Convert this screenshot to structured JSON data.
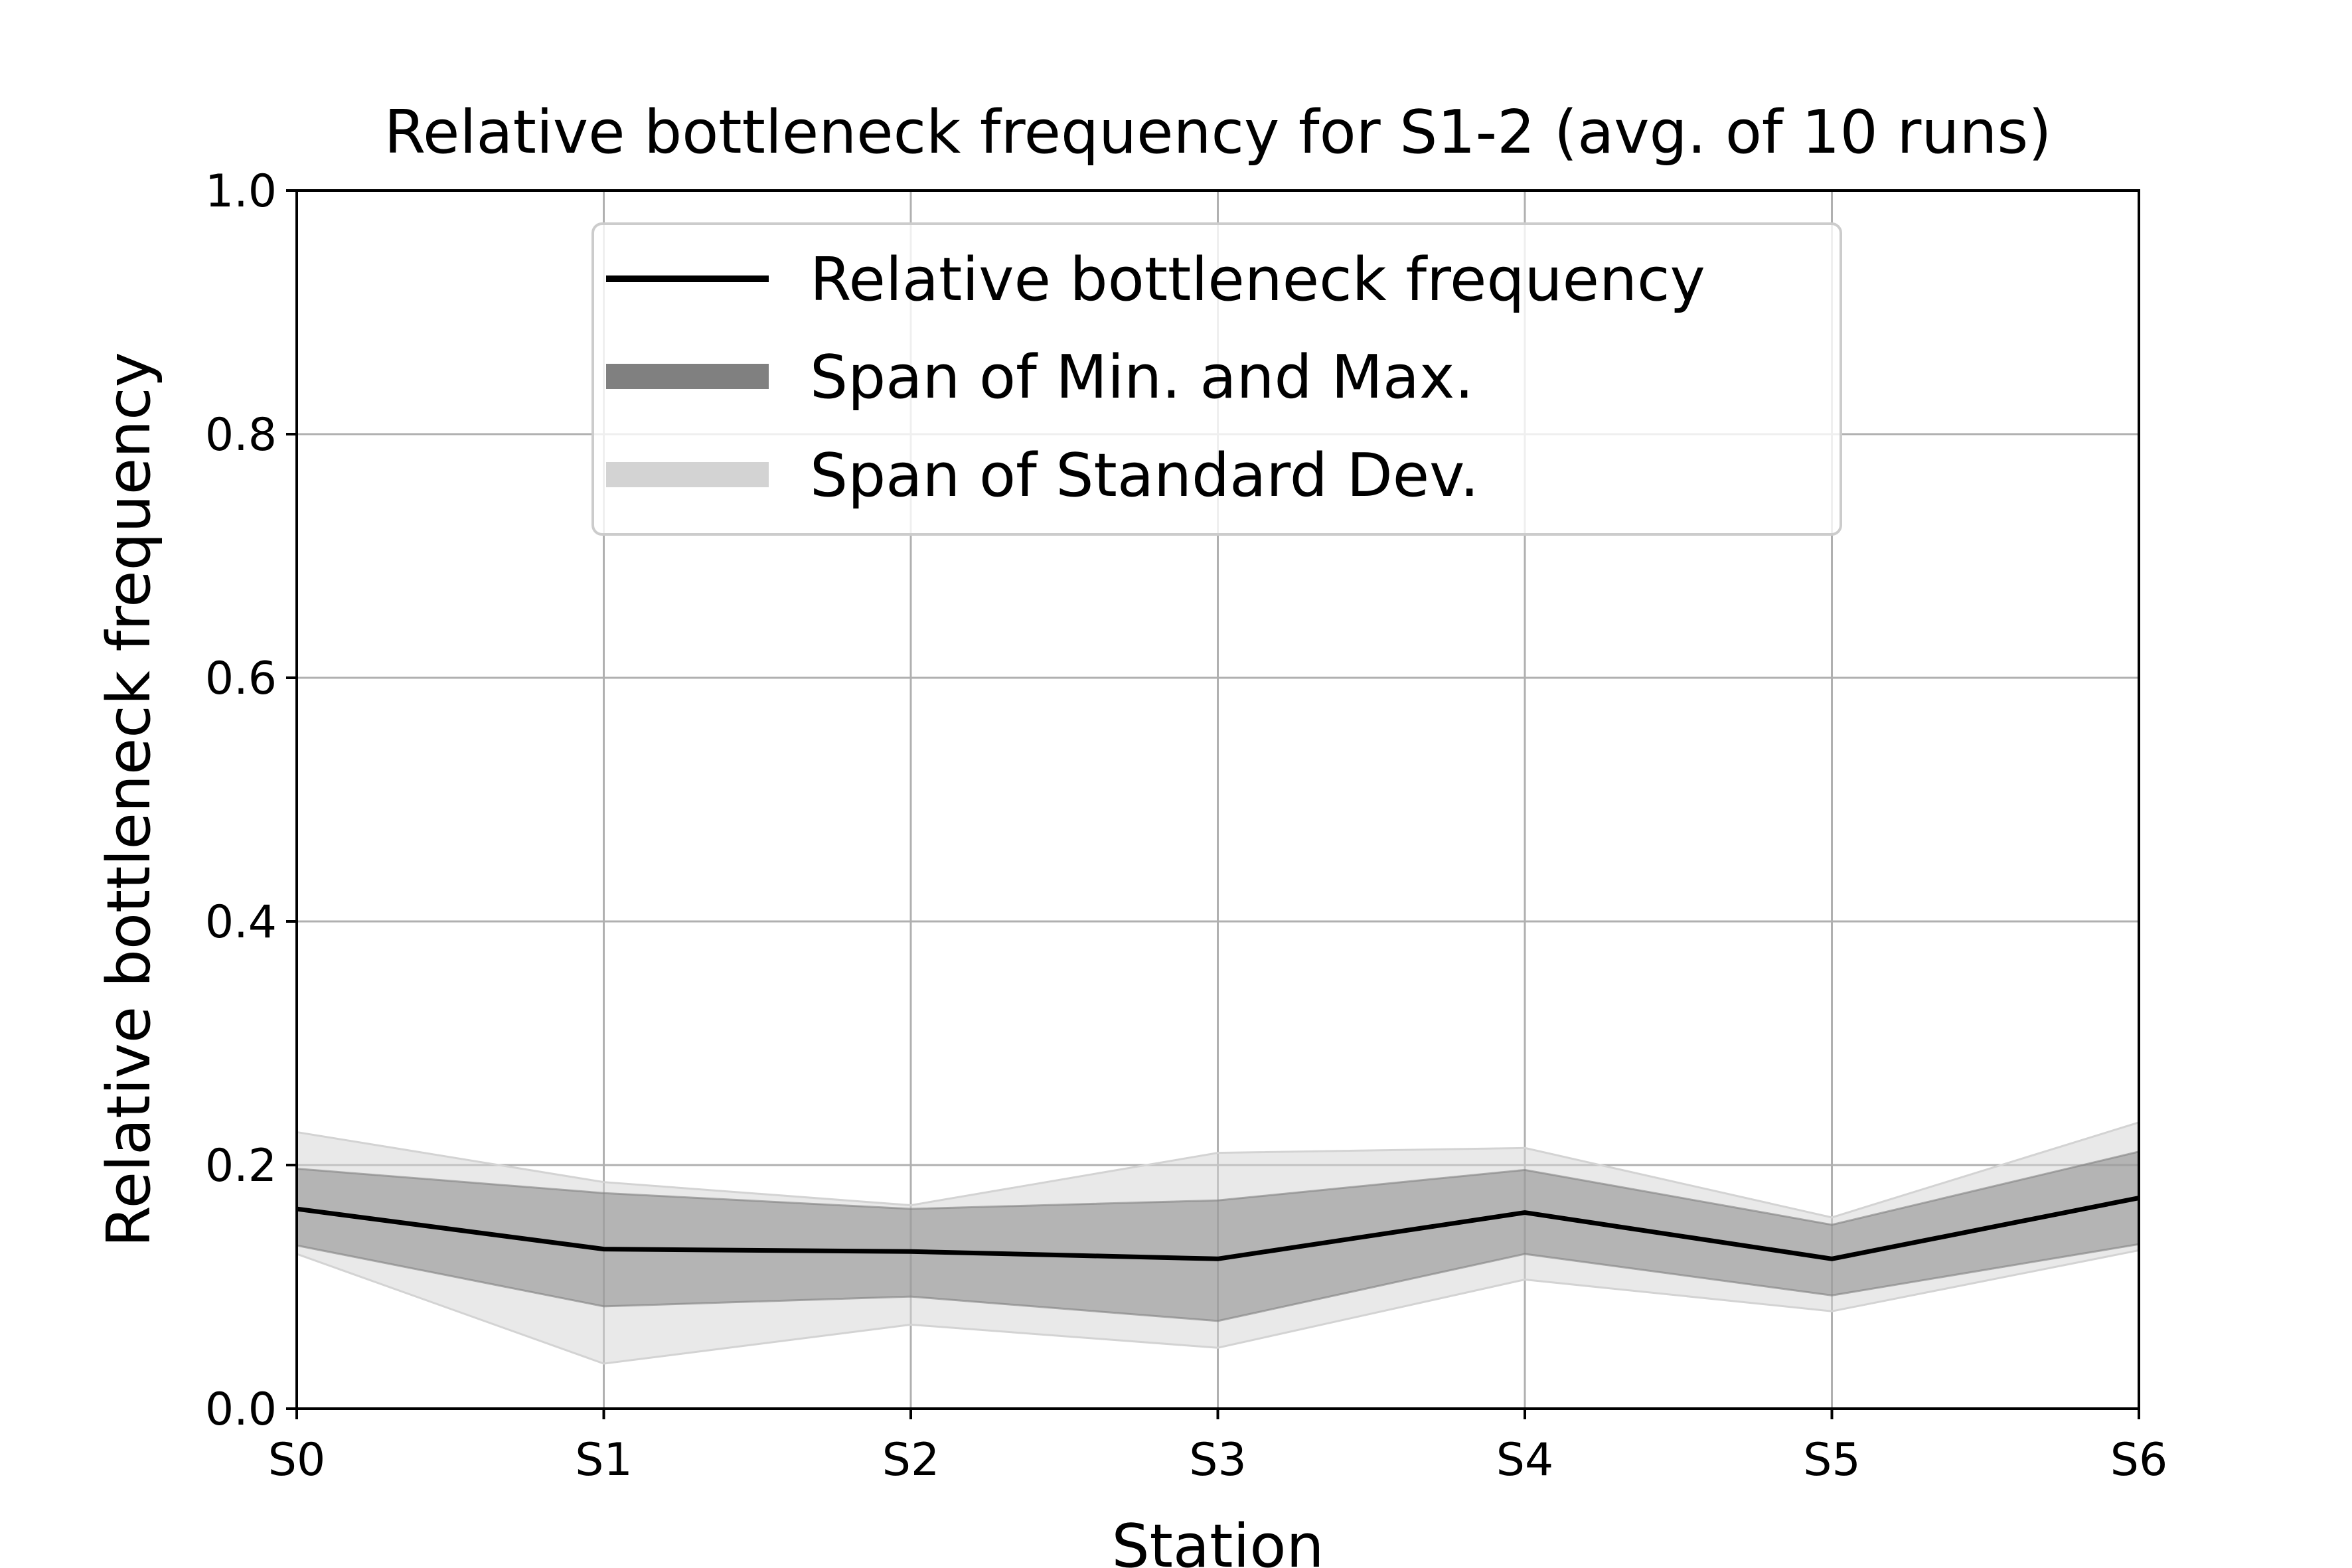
{
  "chart_data": {
    "type": "line",
    "title": "Relative bottleneck frequency for S1-2 (avg. of 10 runs)",
    "xlabel": "Station",
    "ylabel": "Relative bottleneck frequency",
    "categories": [
      "S0",
      "S1",
      "S2",
      "S3",
      "S4",
      "S5",
      "S6"
    ],
    "ylim": [
      0,
      1
    ],
    "yticks": [
      "0.0",
      "0.2",
      "0.4",
      "0.6",
      "0.8",
      "1.0"
    ],
    "grid": true,
    "legend_position": "upper-center",
    "series": [
      {
        "name": "Relative bottleneck frequency",
        "type": "line",
        "color": "#000000",
        "values": [
          0.164,
          0.131,
          0.129,
          0.123,
          0.161,
          0.123,
          0.173
        ]
      },
      {
        "name": "Span of Min. and Max.",
        "type": "band",
        "color": "#808080",
        "lower": [
          0.134,
          0.084,
          0.092,
          0.072,
          0.127,
          0.093,
          0.135
        ],
        "upper": [
          0.197,
          0.177,
          0.164,
          0.171,
          0.196,
          0.151,
          0.211
        ]
      },
      {
        "name": "Span of Standard Dev.",
        "type": "band",
        "color": "#d3d3d3",
        "lower": [
          0.127,
          0.037,
          0.069,
          0.05,
          0.106,
          0.08,
          0.13
        ],
        "upper": [
          0.227,
          0.186,
          0.167,
          0.21,
          0.214,
          0.157,
          0.235
        ]
      }
    ]
  }
}
